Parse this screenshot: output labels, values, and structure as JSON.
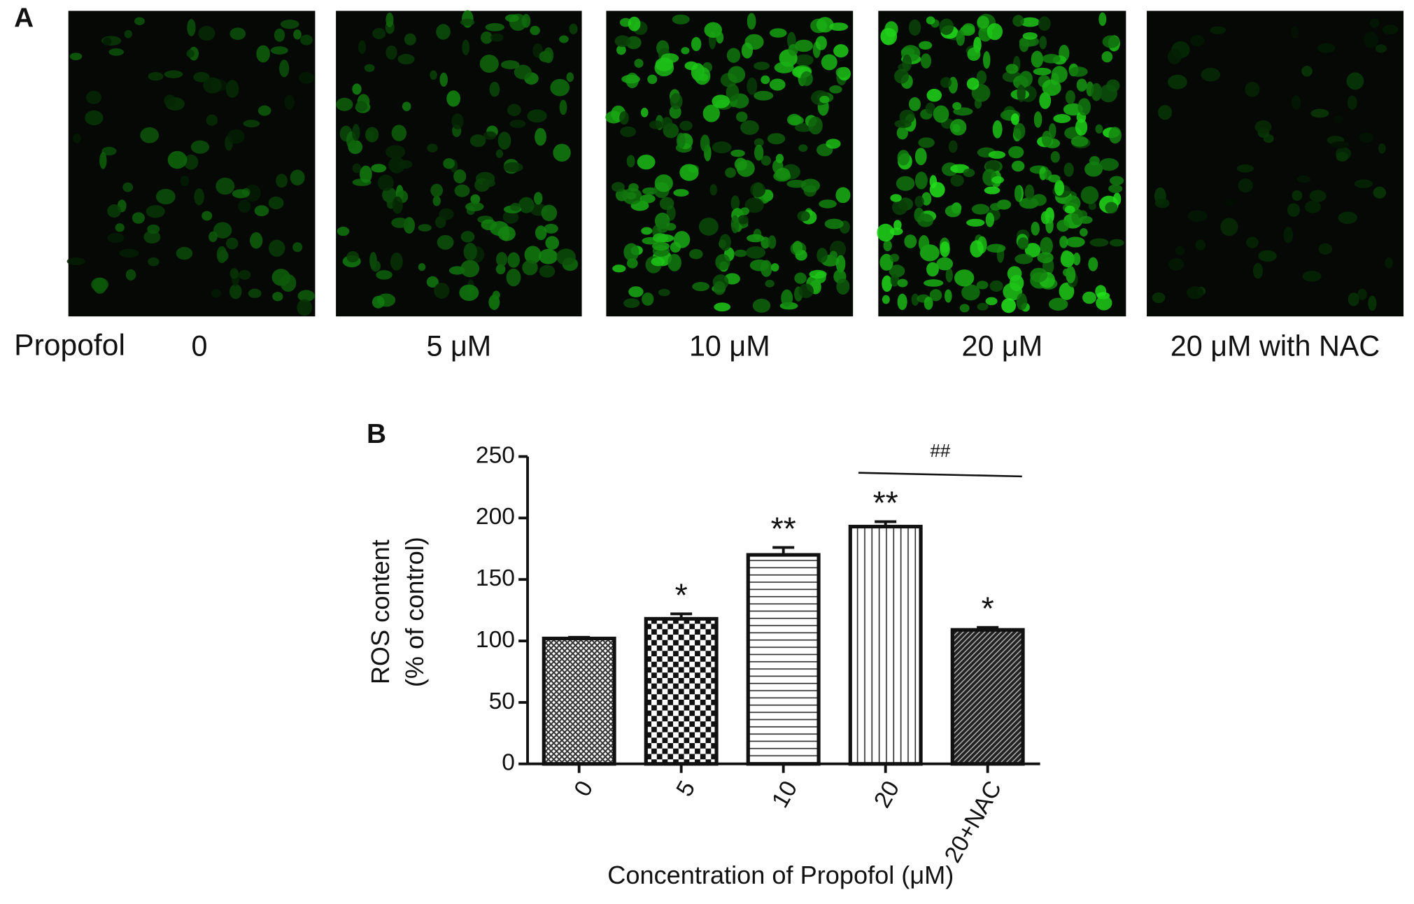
{
  "panel_a": {
    "label": "A",
    "row_label": "Propofol",
    "images": [
      {
        "label": "0"
      },
      {
        "label": "5 μM"
      },
      {
        "label": "10 μM"
      },
      {
        "label": "20 μM"
      },
      {
        "label": "20 μM with NAC"
      }
    ]
  },
  "chart_data": {
    "type": "bar",
    "panel_label": "B",
    "ylabel": [
      "ROS content",
      "(% of control)"
    ],
    "xlabel": "Concentration of Propofol (μM)",
    "categories": [
      "0",
      "5",
      "10",
      "20",
      "20+NAC"
    ],
    "values": [
      102,
      118,
      170,
      193,
      109
    ],
    "errors": [
      1,
      4,
      6,
      4,
      2
    ],
    "annotations": [
      null,
      "*",
      "**",
      "**",
      "*"
    ],
    "bracket_label": "##",
    "ylim": [
      0,
      250
    ],
    "yticks": [
      0,
      50,
      100,
      150,
      200,
      250
    ]
  }
}
